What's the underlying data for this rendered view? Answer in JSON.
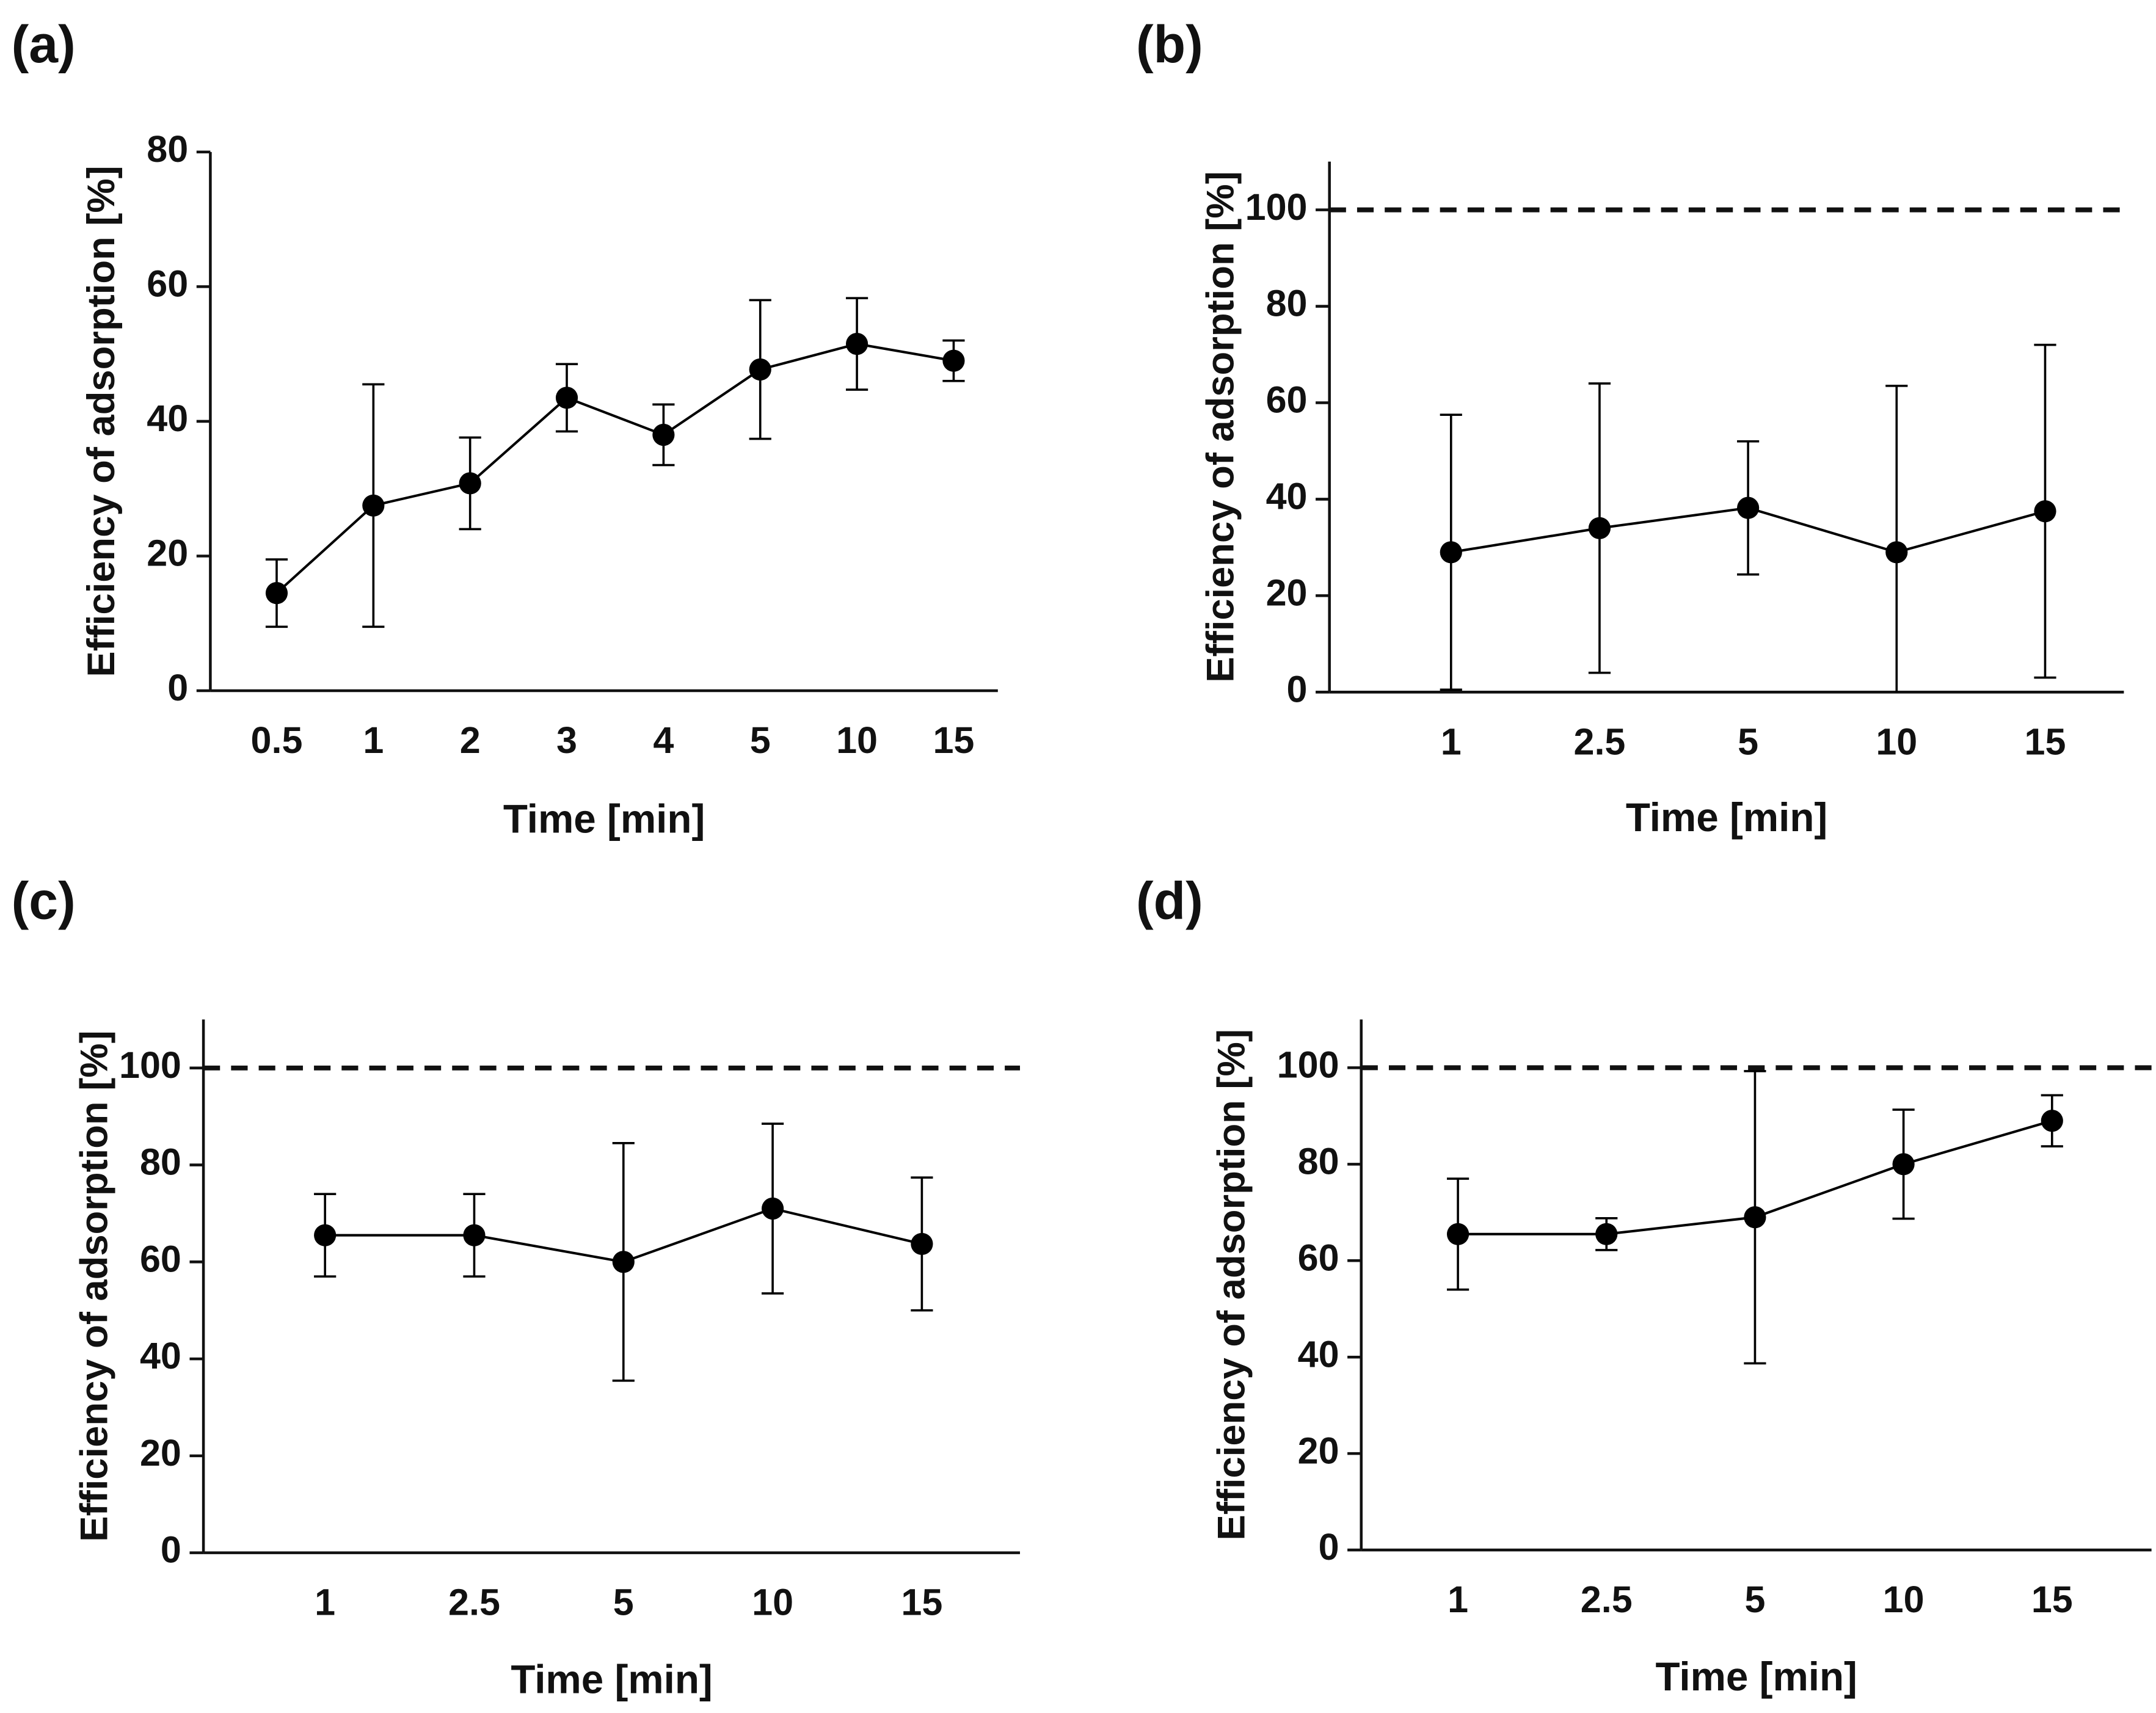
{
  "chart_data": [
    {
      "type": "line",
      "panel_label": "(a)",
      "x_label": "Time [min]",
      "y_label": "Efficiency of adsorption [%]",
      "categories": [
        "0.5",
        "1",
        "2",
        "3",
        "4",
        "5",
        "10",
        "15"
      ],
      "values": [
        14.5,
        27.5,
        30.8,
        43.5,
        38,
        47.7,
        51.5,
        49
      ],
      "errors": [
        5,
        18,
        6.8,
        5,
        4.5,
        10.3,
        6.8,
        3
      ],
      "color": "#000000",
      "ylim": [
        0,
        80
      ],
      "yticks": [
        0,
        20,
        40,
        60,
        80
      ]
    },
    {
      "type": "line",
      "panel_label": "(b)",
      "x_label": "Time [min]",
      "y_label": "Efficiency of adsorption [%]",
      "categories": [
        "1",
        "2.5",
        "5",
        "10",
        "15"
      ],
      "values": [
        29,
        34,
        38.2,
        29,
        37.5
      ],
      "errors": [
        28.5,
        30,
        13.8,
        34.5,
        34.5
      ],
      "color": "#000000",
      "ylim": [
        0,
        110
      ],
      "yticks": [
        0,
        20,
        40,
        60,
        80,
        100
      ],
      "reference_line": {
        "value": 100,
        "style": "dashed"
      }
    },
    {
      "type": "line",
      "panel_label": "(c)",
      "x_label": "Time [min]",
      "y_label": "Efficiency of adsorption [%]",
      "categories": [
        "1",
        "2.5",
        "5",
        "10",
        "15"
      ],
      "values": [
        65.5,
        65.5,
        60,
        71,
        63.7
      ],
      "errors": [
        8.5,
        8.5,
        24.5,
        17.5,
        13.7
      ],
      "color": "#000000",
      "ylim": [
        0,
        110
      ],
      "yticks": [
        0,
        20,
        40,
        60,
        80,
        100
      ],
      "reference_line": {
        "value": 100,
        "style": "dashed"
      }
    },
    {
      "type": "line",
      "panel_label": "(d)",
      "x_label": "Time [min]",
      "y_label": "Efficiency of adsorption [%]",
      "categories": [
        "1",
        "2.5",
        "5",
        "10",
        "15"
      ],
      "values": [
        65.5,
        65.5,
        69,
        80,
        89
      ],
      "errors": [
        11.5,
        3.3,
        30.3,
        11.3,
        5.3
      ],
      "color": "#000000",
      "ylim": [
        0,
        110
      ],
      "yticks": [
        0,
        20,
        40,
        60,
        80,
        100
      ],
      "reference_line": {
        "value": 100,
        "style": "dashed"
      }
    }
  ]
}
